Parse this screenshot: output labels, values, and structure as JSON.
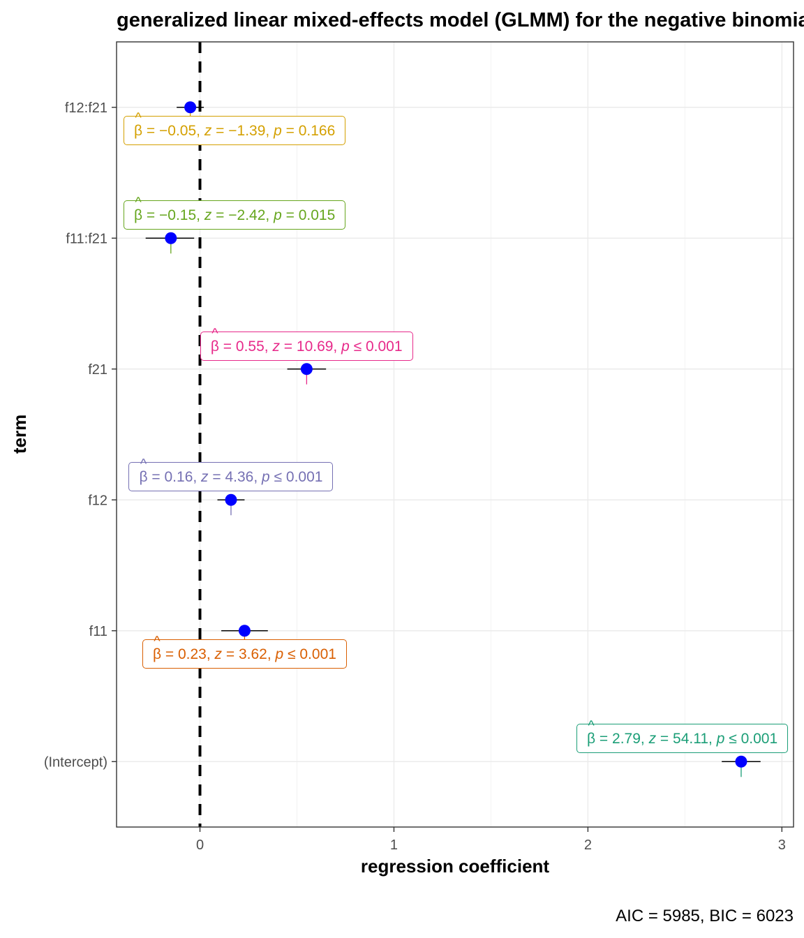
{
  "chart_data": {
    "type": "scatter",
    "title": "generalized linear mixed-effects model (GLMM) for the negative binomial family",
    "xlabel": "regression coefficient",
    "ylabel": "term",
    "caption": "AIC = 5985, BIC = 6023",
    "xlim": [
      -0.43,
      3.06
    ],
    "x_ticks": [
      0,
      1,
      2,
      3
    ],
    "x_tick_labels": [
      "0",
      "1",
      "2",
      "3"
    ],
    "reference_line": 0,
    "grid": true,
    "point_color": "#0000FF",
    "terms": [
      {
        "term": "f12:f21",
        "estimate": -0.05,
        "conf_low": -0.12,
        "conf_high": 0.02,
        "label": {
          "beta": "−0.05",
          "z": "−1.39",
          "p_op": "=",
          "p": "0.166",
          "color": "#D4A000",
          "side": "below"
        }
      },
      {
        "term": "f11:f21",
        "estimate": -0.15,
        "conf_low": -0.28,
        "conf_high": -0.03,
        "label": {
          "beta": "−0.15",
          "z": "−2.42",
          "p_op": "=",
          "p": "0.015",
          "color": "#66A61E",
          "side": "above"
        }
      },
      {
        "term": "f21",
        "estimate": 0.55,
        "conf_low": 0.45,
        "conf_high": 0.65,
        "label": {
          "beta": "0.55",
          "z": "10.69",
          "p_op": "≤",
          "p": "0.001",
          "color": "#E7298A",
          "side": "above"
        }
      },
      {
        "term": "f12",
        "estimate": 0.16,
        "conf_low": 0.09,
        "conf_high": 0.23,
        "label": {
          "beta": "0.16",
          "z": "4.36",
          "p_op": "≤",
          "p": "0.001",
          "color": "#7570B3",
          "side": "above"
        }
      },
      {
        "term": "f11",
        "estimate": 0.23,
        "conf_low": 0.11,
        "conf_high": 0.35,
        "label": {
          "beta": "0.23",
          "z": "3.62",
          "p_op": "≤",
          "p": "0.001",
          "color": "#D95F02",
          "side": "below"
        }
      },
      {
        "term": "(Intercept)",
        "estimate": 2.79,
        "conf_low": 2.69,
        "conf_high": 2.89,
        "label": {
          "beta": "2.79",
          "z": "54.11",
          "p_op": "≤",
          "p": "0.001",
          "color": "#1B9E77",
          "side": "above"
        }
      }
    ]
  }
}
